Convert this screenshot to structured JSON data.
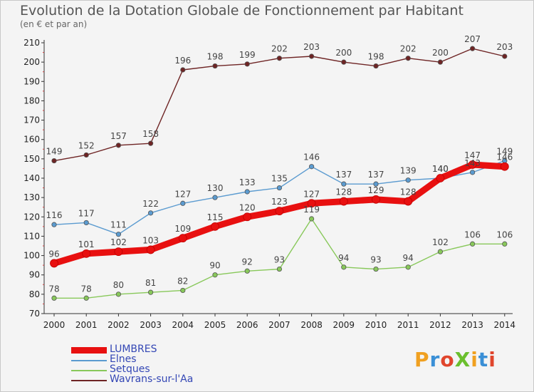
{
  "title": "Evolution de la Dotation Globale de Fonctionnement par Habitant",
  "subtitle": "(en € et par an)",
  "logo": {
    "text": "ProXiti",
    "colors": [
      "#f0a020",
      "#3a8fd6",
      "#e0452c",
      "#6bbf2e",
      "#f0a020",
      "#3a8fd6",
      "#e0452c"
    ]
  },
  "chart_data": {
    "type": "line",
    "title": "Evolution de la Dotation Globale de Fonctionnement par Habitant",
    "subtitle": "(en € et par an)",
    "x": [
      "2000",
      "2001",
      "2002",
      "2003",
      "2004",
      "2005",
      "2006",
      "2007",
      "2008",
      "2009",
      "2010",
      "2011",
      "2012",
      "2013",
      "2014"
    ],
    "ylim": [
      70,
      210
    ],
    "yticks": [
      70,
      80,
      90,
      100,
      110,
      120,
      130,
      140,
      150,
      160,
      170,
      180,
      190,
      200,
      210
    ],
    "grid": false,
    "legend_position": "bottom-left",
    "series": [
      {
        "name": "LUMBRES",
        "color": "#e81010",
        "values": [
          96,
          101,
          102,
          103,
          109,
          115,
          120,
          123,
          127,
          128,
          129,
          128,
          140,
          147,
          146
        ],
        "labels": [
          "96",
          "101",
          "102",
          "103",
          "109",
          "115",
          "120",
          "123",
          "127",
          "128",
          "129",
          "128",
          "140",
          "147",
          "146"
        ]
      },
      {
        "name": "Elnes",
        "color": "#5b9bd0",
        "values": [
          116,
          117,
          111,
          122,
          127,
          130,
          133,
          135,
          146,
          137,
          137,
          139,
          140,
          143,
          149
        ],
        "labels": [
          "116",
          "117",
          "111",
          "122",
          "127",
          "130",
          "133",
          "135",
          "146",
          "137",
          "137",
          "139",
          "140",
          "143",
          "149"
        ]
      },
      {
        "name": "Setques",
        "color": "#88c85a",
        "values": [
          78,
          78,
          80,
          81,
          82,
          90,
          92,
          93,
          119,
          94,
          93,
          94,
          102,
          106,
          106
        ],
        "labels": [
          "78",
          "78",
          "80",
          "81",
          "82",
          "90",
          "92",
          "93",
          "119",
          "94",
          "93",
          "94",
          "102",
          "106",
          "106"
        ]
      },
      {
        "name": "Wavrans-sur-l'Aa",
        "color": "#6e2424",
        "values": [
          149,
          152,
          157,
          158,
          196,
          198,
          199,
          202,
          203,
          200,
          198,
          202,
          200,
          207,
          203
        ],
        "labels": [
          "149",
          "152",
          "157",
          "158",
          "196",
          "198",
          "199",
          "202",
          "203",
          "200",
          "198",
          "202",
          "200",
          "207",
          "203"
        ]
      }
    ]
  }
}
